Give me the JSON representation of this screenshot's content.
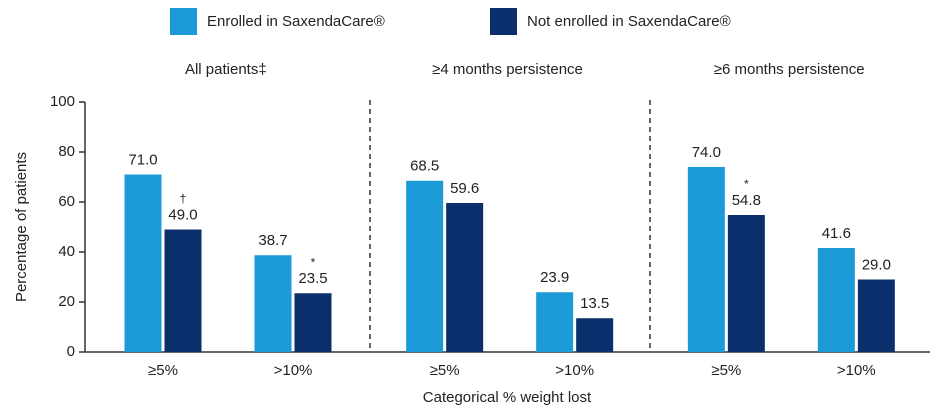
{
  "chart_data": {
    "type": "bar",
    "groups": [
      "All patients‡",
      "≥4 months persistence",
      "≥6 months persistence"
    ],
    "categories": [
      "≥5%",
      ">10%",
      "≥5%",
      ">10%",
      "≥5%",
      ">10%"
    ],
    "series": [
      {
        "name": "Enrolled in SaxendaCare®",
        "color": "#1b9ad7",
        "values": [
          71.0,
          38.7,
          68.5,
          23.9,
          74.0,
          41.6
        ],
        "value_labels": [
          "71.0",
          "38.7",
          "68.5",
          "23.9",
          "74.0",
          "41.6"
        ]
      },
      {
        "name": "Not enrolled in SaxendaCare®",
        "color": "#0b2f6c",
        "values": [
          49.0,
          23.5,
          59.6,
          13.5,
          54.8,
          29.0
        ],
        "value_labels": [
          "49.0",
          "23.5",
          "59.6",
          "13.5",
          "54.8",
          "29.0"
        ],
        "markers": [
          "†",
          "*",
          null,
          null,
          "*",
          null
        ]
      }
    ],
    "y_label": "Percentage of patients",
    "x_label": "Categorical % weight lost",
    "ylim": [
      0,
      100
    ],
    "yticks": [
      0,
      20,
      40,
      60,
      80,
      100
    ]
  }
}
